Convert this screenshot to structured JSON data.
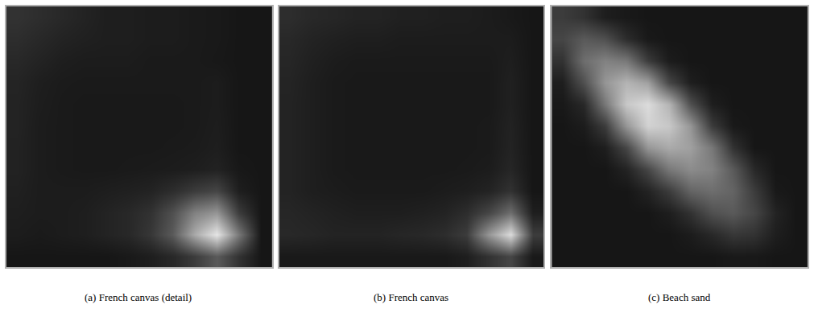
{
  "chart_data": [
    {
      "type": "heatmap",
      "title": "(a) French canvas (detail)",
      "tick_labels": false,
      "zlim": [
        0,
        255
      ],
      "z": [
        [
          50,
          45,
          40,
          35,
          30,
          30,
          28,
          28,
          26,
          25,
          22,
          22
        ],
        [
          45,
          40,
          35,
          32,
          30,
          30,
          28,
          28,
          26,
          25,
          22,
          22
        ],
        [
          40,
          35,
          30,
          28,
          28,
          28,
          26,
          26,
          26,
          24,
          22,
          22
        ],
        [
          36,
          30,
          27,
          26,
          26,
          26,
          26,
          26,
          26,
          28,
          22,
          22
        ],
        [
          35,
          29,
          26,
          25,
          25,
          25,
          25,
          25,
          26,
          28,
          22,
          22
        ],
        [
          35,
          28,
          26,
          25,
          25,
          25,
          25,
          25,
          26,
          29,
          22,
          22
        ],
        [
          34,
          28,
          26,
          25,
          25,
          25,
          25,
          26,
          27,
          30,
          22,
          22
        ],
        [
          34,
          28,
          26,
          25,
          25,
          26,
          27,
          28,
          30,
          34,
          24,
          22
        ],
        [
          32,
          28,
          28,
          28,
          30,
          32,
          35,
          45,
          60,
          70,
          30,
          22
        ],
        [
          30,
          28,
          28,
          30,
          35,
          40,
          50,
          80,
          130,
          150,
          60,
          22
        ],
        [
          28,
          26,
          28,
          30,
          35,
          40,
          55,
          90,
          170,
          230,
          120,
          22
        ],
        [
          22,
          22,
          22,
          22,
          22,
          25,
          30,
          40,
          60,
          90,
          50,
          22
        ]
      ]
    },
    {
      "type": "heatmap",
      "title": "(b) French canvas",
      "tick_labels": false,
      "zlim": [
        0,
        255
      ],
      "z": [
        [
          45,
          40,
          38,
          35,
          35,
          32,
          32,
          30,
          30,
          28,
          25,
          22
        ],
        [
          40,
          35,
          32,
          30,
          30,
          28,
          28,
          28,
          28,
          28,
          28,
          22
        ],
        [
          38,
          32,
          28,
          26,
          26,
          26,
          26,
          26,
          26,
          26,
          30,
          22
        ],
        [
          36,
          30,
          26,
          25,
          25,
          25,
          25,
          25,
          25,
          25,
          32,
          22
        ],
        [
          35,
          30,
          26,
          25,
          25,
          25,
          25,
          25,
          25,
          25,
          32,
          22
        ],
        [
          35,
          30,
          26,
          25,
          25,
          25,
          25,
          25,
          25,
          26,
          34,
          22
        ],
        [
          35,
          30,
          26,
          25,
          25,
          25,
          25,
          25,
          25,
          26,
          35,
          22
        ],
        [
          35,
          30,
          26,
          25,
          25,
          25,
          25,
          25,
          26,
          28,
          38,
          22
        ],
        [
          35,
          30,
          28,
          26,
          26,
          26,
          26,
          28,
          30,
          35,
          50,
          22
        ],
        [
          38,
          35,
          32,
          30,
          30,
          30,
          32,
          35,
          45,
          70,
          110,
          30
        ],
        [
          40,
          38,
          35,
          35,
          35,
          38,
          40,
          45,
          60,
          150,
          220,
          60
        ],
        [
          25,
          25,
          25,
          25,
          25,
          25,
          25,
          25,
          30,
          50,
          70,
          25
        ]
      ]
    },
    {
      "type": "heatmap",
      "title": "(c) Beach sand",
      "tick_labels": false,
      "zlim": [
        0,
        255
      ],
      "z": [
        [
          60,
          50,
          30,
          25,
          22,
          22,
          22,
          22,
          22,
          22,
          22,
          22
        ],
        [
          70,
          90,
          80,
          45,
          25,
          22,
          22,
          22,
          22,
          22,
          22,
          22
        ],
        [
          50,
          110,
          130,
          120,
          60,
          28,
          22,
          22,
          22,
          22,
          22,
          22
        ],
        [
          30,
          80,
          150,
          180,
          160,
          70,
          30,
          22,
          22,
          22,
          22,
          22
        ],
        [
          25,
          40,
          120,
          200,
          220,
          180,
          80,
          30,
          22,
          22,
          22,
          22
        ],
        [
          22,
          28,
          60,
          150,
          210,
          200,
          150,
          60,
          25,
          22,
          22,
          22
        ],
        [
          22,
          22,
          30,
          70,
          150,
          170,
          160,
          120,
          50,
          22,
          22,
          22
        ],
        [
          22,
          22,
          22,
          35,
          70,
          120,
          140,
          130,
          90,
          40,
          22,
          22
        ],
        [
          22,
          22,
          22,
          22,
          35,
          60,
          100,
          110,
          100,
          60,
          25,
          22
        ],
        [
          22,
          22,
          22,
          22,
          22,
          30,
          50,
          80,
          90,
          70,
          35,
          22
        ],
        [
          22,
          22,
          22,
          22,
          22,
          22,
          28,
          40,
          55,
          50,
          30,
          22
        ],
        [
          22,
          22,
          22,
          22,
          22,
          22,
          22,
          22,
          25,
          25,
          22,
          22
        ]
      ]
    }
  ]
}
